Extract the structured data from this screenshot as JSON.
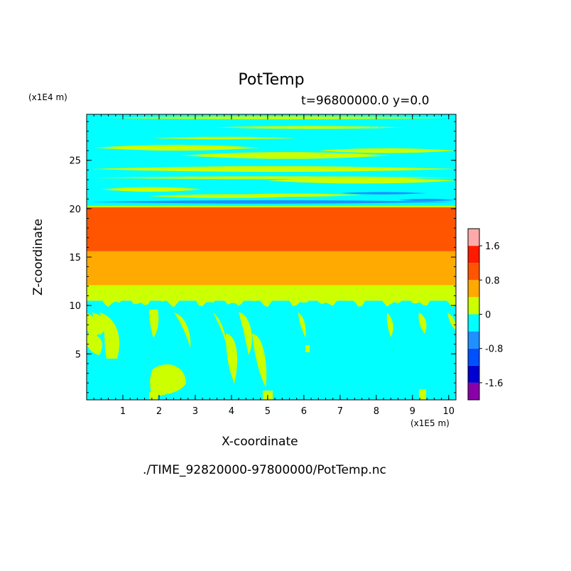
{
  "chart_data": {
    "type": "heatmap",
    "title": "PotTemp",
    "subtitle": "t=96800000.0 y=0.0",
    "xlabel": "X-coordinate",
    "ylabel": "Z-coordinate",
    "x_unit_label": "(x1E5 m)",
    "y_unit_label": "(x1E4 m)",
    "xlim": [
      0,
      10.2
    ],
    "ylim": [
      0.25,
      29.75
    ],
    "x_ticks": [
      1,
      2,
      3,
      4,
      5,
      6,
      7,
      8,
      9,
      10
    ],
    "y_ticks": [
      5,
      10,
      15,
      20,
      25
    ],
    "colorbar": {
      "levels": [
        -2.0,
        -1.6,
        -1.2,
        -0.8,
        -0.4,
        0,
        0.4,
        0.8,
        1.2,
        1.6,
        2.0
      ],
      "tick_labels": [
        "-1.6",
        "-0.8",
        "0",
        "0.8",
        "1.6"
      ],
      "tick_values": [
        -1.6,
        -0.8,
        0,
        0.8,
        1.6
      ],
      "colors": [
        "#8a00a8",
        "#0000d0",
        "#0050ff",
        "#1e90ff",
        "#00ffff",
        "#ccff00",
        "#ffaa00",
        "#ff5500",
        "#ff1a00",
        "#ffaaaa"
      ]
    },
    "bands": [
      {
        "z0": 0.25,
        "z1": 10.5,
        "level": "-0.4 to 0",
        "color": "#00ffff"
      },
      {
        "z0": 10.5,
        "z1": 12.1,
        "level": "0 to 0.4",
        "color": "#ccff00"
      },
      {
        "z0": 12.1,
        "z1": 15.6,
        "level": "0.4 to 0.8",
        "color": "#ffaa00"
      },
      {
        "z0": 15.6,
        "z1": 20.2,
        "level": "0.8 to 1.2",
        "color": "#ff5500"
      },
      {
        "z0": 20.2,
        "z1": 29.75,
        "level": "-0.4 to 0",
        "color": "#00ffff"
      }
    ],
    "footer": "./TIME_92820000-97800000/PotTemp.nc"
  }
}
